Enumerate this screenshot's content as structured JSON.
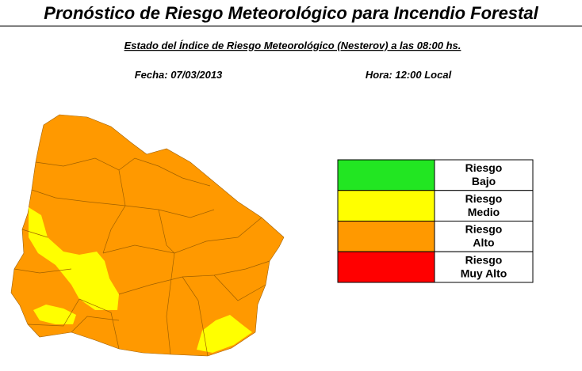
{
  "header": {
    "title": "Pronóstico de Riesgo Meteorológico para Incendio Forestal",
    "subtitle": "Estado del Índice de Riesgo Meteorológico (Nesterov) a las 08:00 hs.",
    "date": "Fecha: 07/03/2013",
    "time": "Hora: 12:00 Local"
  },
  "legend": {
    "items": [
      {
        "lines": [
          "Riesgo",
          "Bajo"
        ],
        "color": "#22e622"
      },
      {
        "lines": [
          "Riesgo",
          "Medio"
        ],
        "color": "#ffff00"
      },
      {
        "lines": [
          "Riesgo",
          "Alto"
        ],
        "color": "#ff9900"
      },
      {
        "lines": [
          "Riesgo",
          "Muy Alto"
        ],
        "color": "#ff0000"
      }
    ]
  }
}
